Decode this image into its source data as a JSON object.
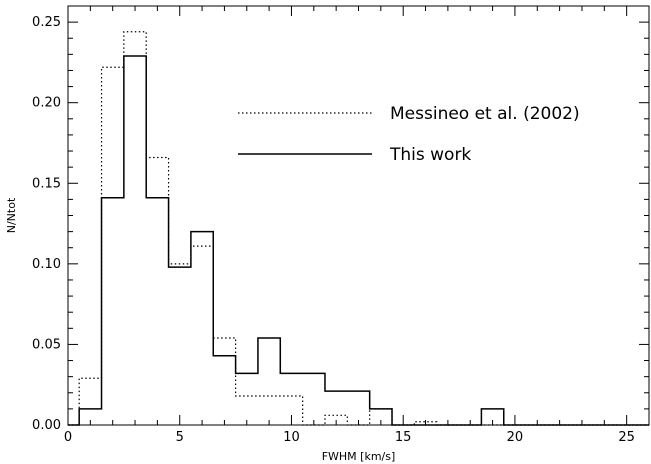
{
  "chart_data": {
    "type": "histogram",
    "title": "",
    "xlabel": "FWHM [km/s]",
    "ylabel": "N/Ntot",
    "xlim": [
      0,
      26
    ],
    "ylim": [
      0,
      0.26
    ],
    "x_ticks": [
      0,
      5,
      10,
      15,
      20,
      25
    ],
    "y_ticks": [
      0.0,
      0.05,
      0.1,
      0.15,
      0.2,
      0.25
    ],
    "y_tick_labels": [
      "0.00",
      "0.05",
      "0.10",
      "0.15",
      "0.20",
      "0.25"
    ],
    "bin_edges": [
      0,
      0.5,
      1.5,
      2.5,
      3.5,
      4.5,
      5.5,
      6.5,
      7.5,
      8.5,
      9.5,
      10.5,
      11.5,
      12.5,
      13.5,
      14.5,
      15.5,
      16.5,
      17.5,
      18.5,
      19.5,
      20.5,
      21.5,
      22.5,
      23.5,
      24.5,
      25.5,
      26
    ],
    "series": [
      {
        "name": "Messineo et al. (2002)",
        "style": "dotted",
        "values": [
          0,
          0.029,
          0.222,
          0.244,
          0.166,
          0.1,
          0.111,
          0.054,
          0.018,
          0.018,
          0.018,
          0,
          0.006,
          0,
          0.01,
          0,
          0.002,
          0,
          0,
          0,
          0,
          0,
          0,
          0,
          0,
          0,
          0
        ]
      },
      {
        "name": "This work",
        "style": "solid",
        "values": [
          0,
          0.01,
          0.141,
          0.229,
          0.141,
          0.098,
          0.12,
          0.043,
          0.032,
          0.054,
          0.032,
          0.032,
          0.021,
          0.021,
          0.01,
          0,
          0,
          0,
          0,
          0.01,
          0,
          0,
          0,
          0,
          0,
          0,
          0
        ]
      }
    ],
    "legend_position": "top-right"
  }
}
